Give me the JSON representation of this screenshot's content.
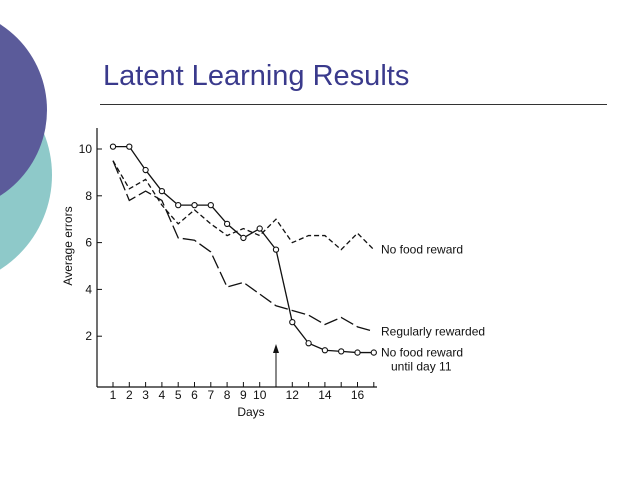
{
  "slide": {
    "title": "Latent Learning Results",
    "title_color": "#3a3a8c",
    "accent_colors": [
      "#5b5b9a",
      "#8ec9c9"
    ]
  },
  "chart_data": {
    "type": "line",
    "xlabel": "Days",
    "ylabel": "Average errors",
    "x_ticks": [
      1,
      2,
      3,
      4,
      5,
      6,
      7,
      8,
      9,
      10,
      12,
      14,
      16
    ],
    "y_ticks": [
      2,
      4,
      6,
      8,
      10
    ],
    "xlim": [
      0,
      17
    ],
    "ylim": [
      0,
      11
    ],
    "grid": false,
    "annotation_arrow_day": 11,
    "series": [
      {
        "name": "No food reward",
        "style": "short-dash",
        "x": [
          1,
          2,
          3,
          4,
          5,
          6,
          7,
          8,
          9,
          10,
          11,
          12,
          13,
          14,
          15,
          16,
          17
        ],
        "y": [
          9.5,
          8.3,
          8.7,
          7.6,
          6.8,
          7.4,
          6.8,
          6.3,
          6.6,
          6.3,
          7.0,
          6.0,
          6.3,
          6.3,
          5.7,
          6.4,
          5.7
        ]
      },
      {
        "name": "Regularly rewarded",
        "style": "long-dash",
        "x": [
          1,
          2,
          3,
          4,
          5,
          6,
          7,
          8,
          9,
          10,
          11,
          12,
          13,
          14,
          15,
          16,
          17
        ],
        "y": [
          9.5,
          7.8,
          8.2,
          7.8,
          6.2,
          6.1,
          5.6,
          4.1,
          4.3,
          3.8,
          3.3,
          3.1,
          2.9,
          2.5,
          2.8,
          2.4,
          2.2
        ]
      },
      {
        "name": "No food reward until day 11",
        "label_lines": [
          "No food reward",
          "until day 11"
        ],
        "style": "solid-circles",
        "x": [
          1,
          2,
          3,
          4,
          5,
          6,
          7,
          8,
          9,
          10,
          11,
          12,
          13,
          14,
          15,
          16,
          17
        ],
        "y": [
          10.1,
          10.1,
          9.1,
          8.2,
          7.6,
          7.6,
          7.6,
          6.8,
          6.2,
          6.6,
          5.7,
          2.6,
          1.7,
          1.4,
          1.35,
          1.3,
          1.3
        ]
      }
    ]
  }
}
